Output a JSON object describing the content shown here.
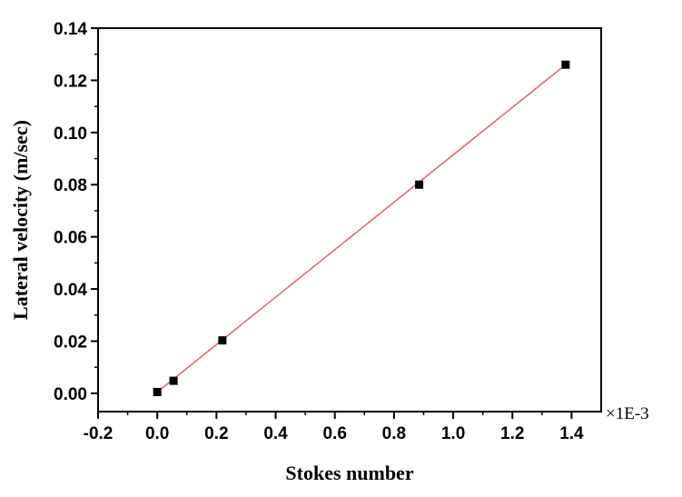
{
  "chart_data": {
    "type": "scatter",
    "title": "",
    "xlabel": "Stokes number",
    "ylabel": "Lateral velocity (m/sec)",
    "x_multiplier_label": "×1E-3",
    "xlim": [
      -0.2,
      1.5
    ],
    "ylim": [
      -0.007,
      0.14
    ],
    "x_ticks": [
      -0.2,
      0.0,
      0.2,
      0.4,
      0.6,
      0.8,
      1.0,
      1.2,
      1.4
    ],
    "x_tick_labels": [
      "-0.2",
      "0.0",
      "0.2",
      "0.4",
      "0.6",
      "0.8",
      "1.0",
      "1.2",
      "1.4"
    ],
    "y_ticks": [
      0.0,
      0.02,
      0.04,
      0.06,
      0.08,
      0.1,
      0.12,
      0.14
    ],
    "y_tick_labels": [
      "0.00",
      "0.02",
      "0.04",
      "0.06",
      "0.08",
      "0.10",
      "0.12",
      "0.14"
    ],
    "grid": false,
    "series": [
      {
        "points": [
          {
            "x": 0.0,
            "y": 0.0005
          },
          {
            "x": 0.055,
            "y": 0.0048
          },
          {
            "x": 0.22,
            "y": 0.0203
          },
          {
            "x": 0.885,
            "y": 0.08
          },
          {
            "x": 1.38,
            "y": 0.126
          }
        ],
        "marker": "square",
        "color": "#000000"
      }
    ],
    "fit_line": {
      "x": [
        0.0,
        1.38
      ],
      "y": [
        0.0005,
        0.126
      ],
      "color": "#e06060"
    }
  }
}
